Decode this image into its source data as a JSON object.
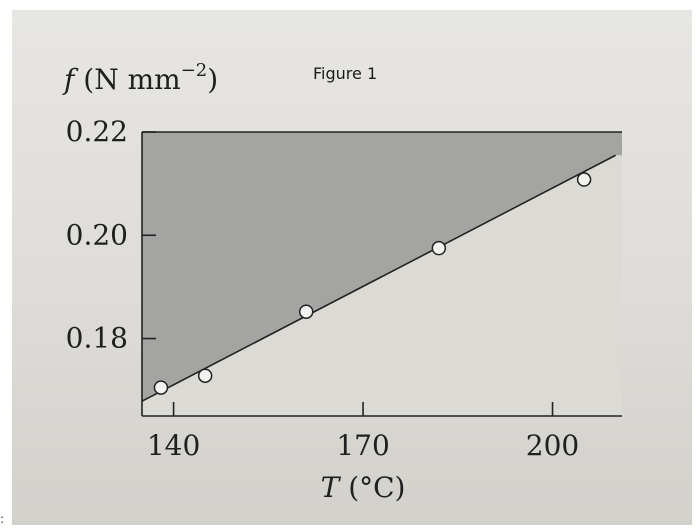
{
  "page": {
    "figure_label": "Figure 1",
    "stray_mark": ":"
  },
  "chart_data": {
    "type": "scatter",
    "x": [
      138,
      145,
      161,
      182,
      205
    ],
    "y": [
      0.1705,
      0.1728,
      0.1852,
      0.1975,
      0.2108
    ],
    "fit_line": {
      "x": [
        136,
        210
      ],
      "y": [
        0.1685,
        0.2155
      ]
    },
    "ylabel_symbol": "f",
    "ylabel_units": "(N mm",
    "ylabel_exp": "−2",
    "ylabel_close": ")",
    "xlabel": "T (°C)",
    "x_ticks": [
      140,
      170,
      200
    ],
    "y_ticks": [
      "0.22",
      "0.20",
      "0.18"
    ],
    "y_tick_values": [
      0.22,
      0.2,
      0.18
    ],
    "xlim": [
      135,
      211
    ],
    "ylim": [
      0.165,
      0.22
    ],
    "shaded_region": "above fit line",
    "grid": false,
    "colors": {
      "shade": "#9a9a9a",
      "plot_bg": "#dcdad5",
      "line": "#222222",
      "marker_fill": "#f2f2f0"
    }
  }
}
